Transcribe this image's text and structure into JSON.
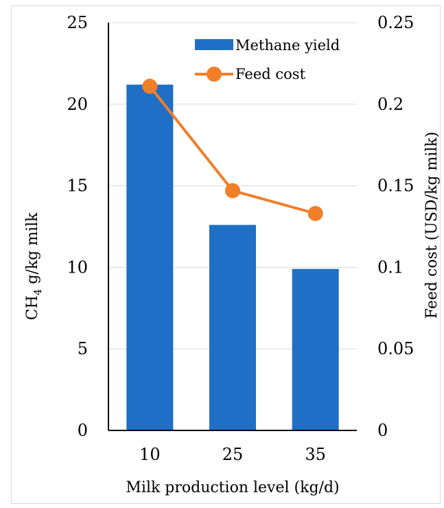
{
  "chart_data": {
    "type": "bar",
    "categories": [
      "10",
      "25",
      "35"
    ],
    "series": [
      {
        "name": "Methane yield",
        "type": "bar",
        "axis": "left",
        "color": "#1f6fc6",
        "values": [
          21.2,
          12.6,
          9.9
        ]
      },
      {
        "name": "Feed cost",
        "type": "line",
        "axis": "right",
        "color": "#f07f28",
        "values": [
          0.211,
          0.147,
          0.133
        ]
      }
    ],
    "xlabel": "Milk production level (kg/d)",
    "ylabel": {
      "prefix": "CH",
      "sub": "4",
      "suffix": " g/kg milk"
    },
    "y2label": "Feed cost (USD/kg milk)",
    "ylim": [
      0,
      25
    ],
    "y2lim": [
      0,
      0.25
    ],
    "yticks": [
      "0",
      "5",
      "10",
      "15",
      "20",
      "25"
    ],
    "y2ticks": [
      "0",
      "0.05",
      "0.1",
      "0.15",
      "0.2",
      "0.25"
    ],
    "grid": true,
    "legend_position": "top-right"
  }
}
